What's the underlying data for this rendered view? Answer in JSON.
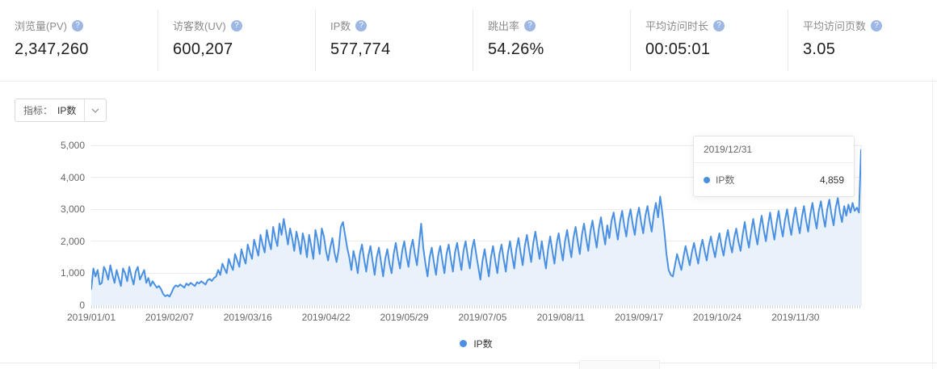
{
  "stats": {
    "help_glyph": "?",
    "items": [
      {
        "label": "浏览量(PV)",
        "value": "2,347,260"
      },
      {
        "label": "访客数(UV)",
        "value": "600,207"
      },
      {
        "label": "IP数",
        "value": "577,774"
      },
      {
        "label": "跳出率",
        "value": "54.26%"
      },
      {
        "label": "平均访问时长",
        "value": "00:05:01"
      },
      {
        "label": "平均访问页数",
        "value": "3.05"
      }
    ]
  },
  "metric_selector": {
    "label": "指标：",
    "value": "IP数"
  },
  "tooltip": {
    "date": "2019/12/31",
    "series": "IP数",
    "value": "4,859"
  },
  "legend": {
    "label": "IP数"
  },
  "colors": {
    "line": "#4a90e2",
    "fill": "#e9f1fb",
    "grid": "#ededed"
  },
  "chart_data": {
    "type": "area",
    "title": "",
    "xlabel": "",
    "ylabel": "",
    "ylim": [
      0,
      5000
    ],
    "grid": "horizontal",
    "legend_position": "bottom",
    "y_ticks": [
      "0",
      "1,000",
      "2,000",
      "3,000",
      "4,000",
      "5,000"
    ],
    "x_tick_labels": [
      "2019/01/01",
      "2019/02/07",
      "2019/03/16",
      "2019/04/22",
      "2019/05/29",
      "2019/07/05",
      "2019/08/11",
      "2019/09/17",
      "2019/10/24",
      "2019/11/30"
    ],
    "x_tick_days": [
      0,
      37,
      74,
      111,
      148,
      185,
      222,
      259,
      296,
      333
    ],
    "x_range_days": 365,
    "highlight_point": {
      "date": "2019/12/31",
      "value": 4859
    },
    "series": [
      {
        "name": "IP数",
        "values": [
          500,
          1150,
          900,
          1100,
          650,
          700,
          1200,
          1050,
          800,
          1250,
          950,
          700,
          1100,
          850,
          600,
          1150,
          1000,
          750,
          1200,
          900,
          650,
          1050,
          1200,
          800,
          950,
          1100,
          700,
          850,
          600,
          750,
          650,
          550,
          600,
          500,
          350,
          280,
          320,
          270,
          400,
          550,
          620,
          580,
          650,
          600,
          550,
          680,
          620,
          700,
          650,
          600,
          720,
          680,
          750,
          700,
          650,
          780,
          820,
          760,
          850,
          900,
          1100,
          950,
          1300,
          1150,
          1000,
          1450,
          1250,
          1100,
          1600,
          1400,
          1200,
          1750,
          1500,
          1300,
          1900,
          1650,
          1450,
          2050,
          1800,
          1550,
          2200,
          1900,
          1650,
          2350,
          2000,
          1750,
          2450,
          2100,
          1850,
          2550,
          2200,
          2700,
          2300,
          1900,
          2400,
          2100,
          1700,
          2300,
          2000,
          1600,
          2250,
          1950,
          1500,
          2200,
          1850,
          1450,
          2350,
          2050,
          1600,
          2400,
          2150,
          1700,
          1400,
          1800,
          2100,
          1650,
          1350,
          1750,
          2450,
          2600,
          2200,
          1800,
          1500,
          1100,
          1700,
          1400,
          1000,
          1600,
          1900,
          1450,
          1050,
          1550,
          1850,
          1400,
          950,
          1500,
          1800,
          1350,
          900,
          1450,
          1750,
          1300,
          1000,
          1600,
          1950,
          1500,
          1150,
          1700,
          2000,
          1550,
          1200,
          1750,
          2050,
          1600,
          1250,
          1900,
          2550,
          1800,
          1300,
          900,
          1500,
          1800,
          1350,
          950,
          1550,
          1850,
          1400,
          1000,
          1600,
          1900,
          1450,
          1050,
          1650,
          1950,
          1500,
          1100,
          1700,
          2000,
          1550,
          1150,
          1750,
          2050,
          1600,
          1200,
          800,
          1400,
          1750,
          1300,
          900,
          1500,
          1850,
          1400,
          1000,
          1600,
          1900,
          1450,
          1050,
          1650,
          2000,
          1550,
          1150,
          1750,
          2100,
          1650,
          1250,
          1850,
          2200,
          1750,
          1350,
          1950,
          2300,
          1850,
          1450,
          2000,
          1550,
          1150,
          1750,
          2150,
          1700,
          1300,
          1900,
          2250,
          1800,
          1400,
          2000,
          2350,
          1900,
          1500,
          2100,
          2450,
          2000,
          1600,
          2200,
          2550,
          2100,
          1700,
          2300,
          2650,
          2200,
          1800,
          2400,
          2750,
          2300,
          1900,
          2500,
          2100,
          2650,
          2900,
          2450,
          2050,
          2600,
          2950,
          2500,
          2150,
          2700,
          3000,
          2550,
          2200,
          2750,
          3050,
          2600,
          2250,
          2800,
          3100,
          2650,
          2300,
          2850,
          3200,
          2750,
          3400,
          2900,
          2300,
          1600,
          1100,
          950,
          900,
          1250,
          1600,
          1350,
          1100,
          1500,
          1850,
          1550,
          1250,
          1650,
          1950,
          1600,
          1300,
          1750,
          2050,
          1700,
          1400,
          1850,
          2150,
          1800,
          1500,
          1950,
          2250,
          1850,
          1550,
          2000,
          2350,
          1950,
          1650,
          2100,
          2400,
          2000,
          1700,
          2200,
          2600,
          2150,
          1800,
          2300,
          2700,
          2250,
          1900,
          2400,
          2800,
          2350,
          2000,
          2500,
          2900,
          2450,
          2050,
          2550,
          2950,
          2500,
          2150,
          2650,
          3000,
          2550,
          2200,
          2700,
          3050,
          2600,
          2250,
          2750,
          3100,
          2650,
          2300,
          2850,
          3200,
          2750,
          2400,
          2950,
          3250,
          2800,
          2450,
          3000,
          3300,
          2850,
          2500,
          3050,
          3350,
          2900,
          2600,
          3100,
          2800,
          3150,
          2900,
          3200,
          2950,
          3050,
          2900,
          4859
        ]
      }
    ]
  }
}
